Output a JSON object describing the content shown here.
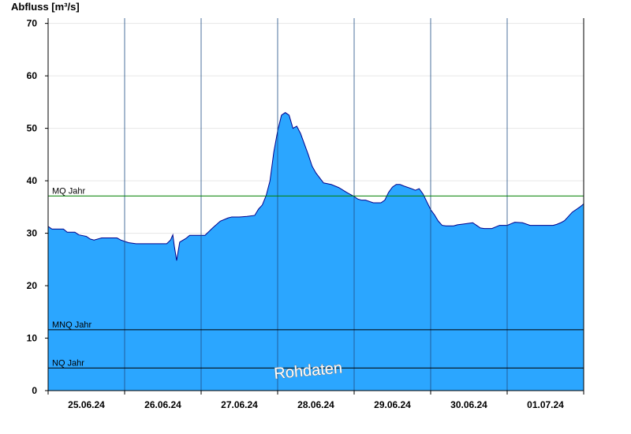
{
  "chart_data": {
    "type": "area",
    "ylabel": "Abfluss [m³/s]",
    "ylim": [
      0,
      71
    ],
    "yticks": [
      0,
      10,
      20,
      30,
      40,
      50,
      60,
      70
    ],
    "xlim": [
      0,
      7
    ],
    "x_tick_labels": [
      {
        "label": "25.06.24",
        "x": 0.5
      },
      {
        "label": "26.06.24",
        "x": 1.5
      },
      {
        "label": "27.06.24",
        "x": 2.5
      },
      {
        "label": "28.06.24",
        "x": 3.5
      },
      {
        "label": "29.06.24",
        "x": 4.5
      },
      {
        "label": "30.06.24",
        "x": 5.5
      },
      {
        "label": "01.07.24",
        "x": 6.5
      }
    ],
    "day_boundaries": [
      1,
      2,
      3,
      4,
      5,
      6
    ],
    "fill_color": "#2ba6ff",
    "line_color": "#00008b",
    "reference_lines": [
      {
        "name": "MQ Jahr",
        "value": 37.1,
        "color": "#008000"
      },
      {
        "name": "MNQ Jahr",
        "value": 11.6,
        "color": "#000000"
      },
      {
        "name": "NQ Jahr",
        "value": 4.3,
        "color": "#000000"
      }
    ],
    "watermark": "Rohdaten",
    "series": [
      {
        "x": [
          0,
          0.05,
          0.2,
          0.25,
          0.35,
          0.4,
          0.5,
          0.55,
          0.6,
          0.7,
          0.75,
          0.9,
          0.95,
          1.05,
          1.15,
          1.3,
          1.4,
          1.55,
          1.6,
          1.63,
          1.65,
          1.68,
          1.72,
          1.8,
          1.85,
          1.95,
          2.05,
          2.15,
          2.25,
          2.35,
          2.4,
          2.5,
          2.6,
          2.7,
          2.75,
          2.8,
          2.85,
          2.9,
          2.95,
          3.0,
          3.05,
          3.1,
          3.15,
          3.2,
          3.25,
          3.3,
          3.35,
          3.4,
          3.45,
          3.5,
          3.6,
          3.7,
          3.8,
          3.9,
          4.0,
          4.05,
          4.1,
          4.15,
          4.25,
          4.35,
          4.4,
          4.45,
          4.5,
          4.55,
          4.6,
          4.65,
          4.75,
          4.8,
          4.85,
          4.9,
          4.95,
          5.0,
          5.05,
          5.1,
          5.15,
          5.2,
          5.25,
          5.3,
          5.35,
          5.45,
          5.55,
          5.6,
          5.65,
          5.7,
          5.8,
          5.9,
          6.0,
          6.05,
          6.1,
          6.2,
          6.3,
          6.4,
          6.5,
          6.6,
          6.65,
          6.7,
          6.75,
          6.8,
          6.85,
          6.9,
          6.95,
          7.0
        ],
        "y": [
          31.3,
          30.8,
          30.8,
          30.2,
          30.2,
          29.7,
          29.4,
          28.9,
          28.7,
          29.1,
          29.1,
          29.1,
          28.7,
          28.2,
          28.0,
          28.0,
          28.0,
          28.0,
          28.7,
          29.7,
          27.5,
          24.8,
          28.3,
          29.0,
          29.6,
          29.6,
          29.6,
          31.0,
          32.3,
          32.9,
          33.1,
          33.1,
          33.2,
          33.4,
          34.6,
          35.4,
          37.2,
          40.0,
          45.5,
          49.5,
          52.5,
          53.0,
          52.5,
          50.0,
          50.4,
          49.0,
          47.0,
          45.0,
          42.8,
          41.5,
          39.6,
          39.3,
          38.7,
          37.8,
          37.0,
          36.5,
          36.3,
          36.3,
          35.8,
          35.8,
          36.3,
          37.8,
          38.8,
          39.3,
          39.3,
          39.0,
          38.5,
          38.2,
          38.5,
          37.5,
          36.0,
          34.5,
          33.5,
          32.3,
          31.5,
          31.4,
          31.4,
          31.4,
          31.6,
          31.8,
          32.0,
          31.5,
          31.0,
          30.9,
          30.9,
          31.5,
          31.5,
          31.8,
          32.1,
          32.0,
          31.5,
          31.5,
          31.5,
          31.5,
          31.7,
          32.0,
          32.4,
          33.2,
          34.0,
          34.5,
          35.0,
          35.6
        ]
      }
    ]
  }
}
